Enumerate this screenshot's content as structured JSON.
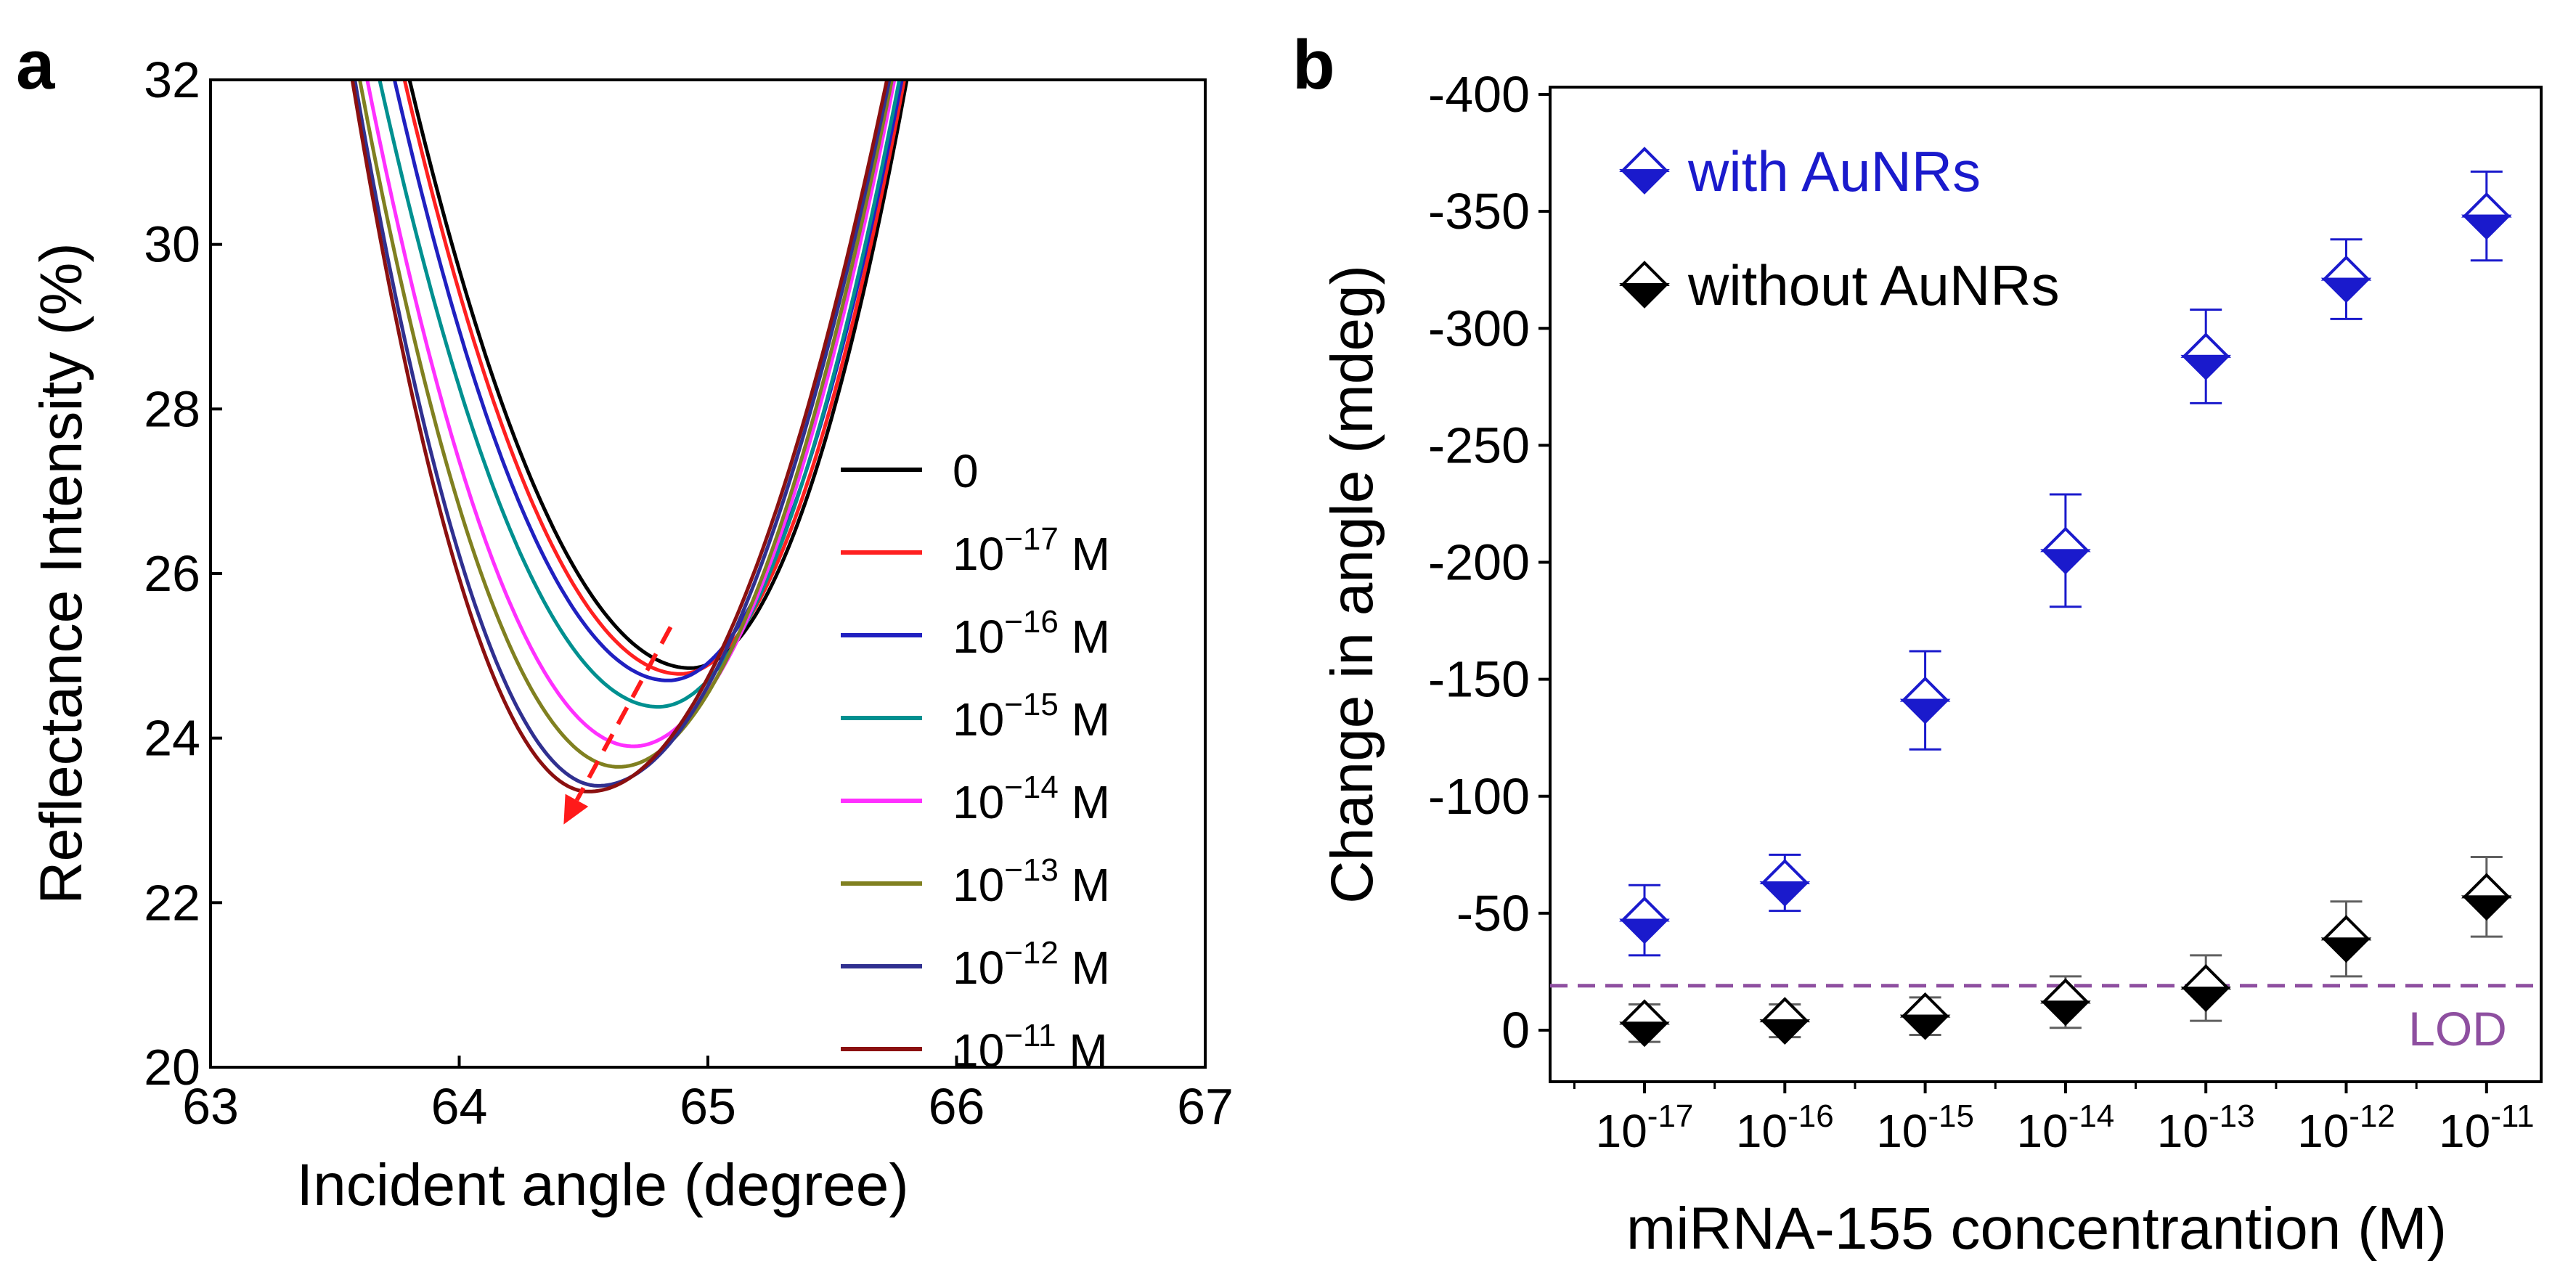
{
  "chart_data": [
    {
      "panel_label": "a",
      "type": "line",
      "xlabel": "Incident angle (degree)",
      "ylabel": "Reflectance Intensity (%)",
      "xlim": [
        63,
        67
      ],
      "ylim": [
        20,
        32
      ],
      "x_ticks": [
        "63",
        "64",
        "65",
        "66",
        "67"
      ],
      "y_ticks": [
        "20",
        "22",
        "24",
        "26",
        "28",
        "30",
        "32"
      ],
      "legend_position": "right",
      "legend": [
        {
          "base": "0",
          "exp": "",
          "unit": ""
        },
        {
          "base": "10",
          "exp": "−17",
          "unit": " M"
        },
        {
          "base": "10",
          "exp": "−16",
          "unit": " M"
        },
        {
          "base": "10",
          "exp": "−15",
          "unit": " M"
        },
        {
          "base": "10",
          "exp": "−14",
          "unit": " M"
        },
        {
          "base": "10",
          "exp": "−13",
          "unit": " M"
        },
        {
          "base": "10",
          "exp": "−12",
          "unit": " M"
        },
        {
          "base": "10",
          "exp": "−11",
          "unit": " M"
        }
      ],
      "series": [
        {
          "color": "#000000",
          "min_x": 64.93,
          "min_y": 24.85,
          "left_x32": 63.8,
          "right_x32": 65.8
        },
        {
          "color": "#ff2020",
          "min_x": 64.89,
          "min_y": 24.78,
          "left_x32": 63.78,
          "right_x32": 65.79
        },
        {
          "color": "#2020c0",
          "min_x": 64.84,
          "min_y": 24.7,
          "left_x32": 63.74,
          "right_x32": 65.78
        },
        {
          "color": "#009090",
          "min_x": 64.8,
          "min_y": 24.38,
          "left_x32": 63.68,
          "right_x32": 65.77
        },
        {
          "color": "#ff30ff",
          "min_x": 64.7,
          "min_y": 23.9,
          "left_x32": 63.63,
          "right_x32": 65.75
        },
        {
          "color": "#808020",
          "min_x": 64.64,
          "min_y": 23.65,
          "left_x32": 63.6,
          "right_x32": 65.74
        },
        {
          "color": "#303090",
          "min_x": 64.56,
          "min_y": 23.42,
          "left_x32": 63.58,
          "right_x32": 65.73
        },
        {
          "color": "#8b1010",
          "min_x": 64.52,
          "min_y": 23.35,
          "left_x32": 63.57,
          "right_x32": 65.72
        }
      ],
      "arrow": {
        "from": [
          64.85,
          25.35
        ],
        "to": [
          64.42,
          22.95
        ],
        "color": "#ff1a1a"
      }
    },
    {
      "panel_label": "b",
      "type": "scatter",
      "xlabel": "miRNA-155 concentrantion (M)",
      "ylabel": "Change in angle (mdeg)",
      "ylim": [
        -400,
        0
      ],
      "y_ticks": [
        "-400",
        "-350",
        "-300",
        "-250",
        "-200",
        "-150",
        "-100",
        "-50",
        "0"
      ],
      "y_tick_values": [
        -400,
        -350,
        -300,
        -250,
        -200,
        -150,
        -100,
        -50,
        0
      ],
      "categories": [
        "-17",
        "-16",
        "-15",
        "-14",
        "-13",
        "-12",
        "-11"
      ],
      "category_base": "10",
      "legend_position": "top-left",
      "series": [
        {
          "name": "with AuNRs",
          "color": "#1a1acc",
          "values": [
            -47,
            -63,
            -141,
            -205,
            -288,
            -321,
            -348
          ],
          "errors": [
            15,
            12,
            21,
            24,
            20,
            17,
            19
          ]
        },
        {
          "name": "without AuNRs",
          "color": "#000000",
          "values": [
            -3,
            -4,
            -6,
            -12,
            -18,
            -39,
            -57
          ],
          "errors": [
            8,
            7,
            8,
            11,
            14,
            16,
            17
          ]
        }
      ],
      "lod": {
        "label": "LOD",
        "value": -19,
        "color": "#8e4fa0"
      }
    }
  ]
}
